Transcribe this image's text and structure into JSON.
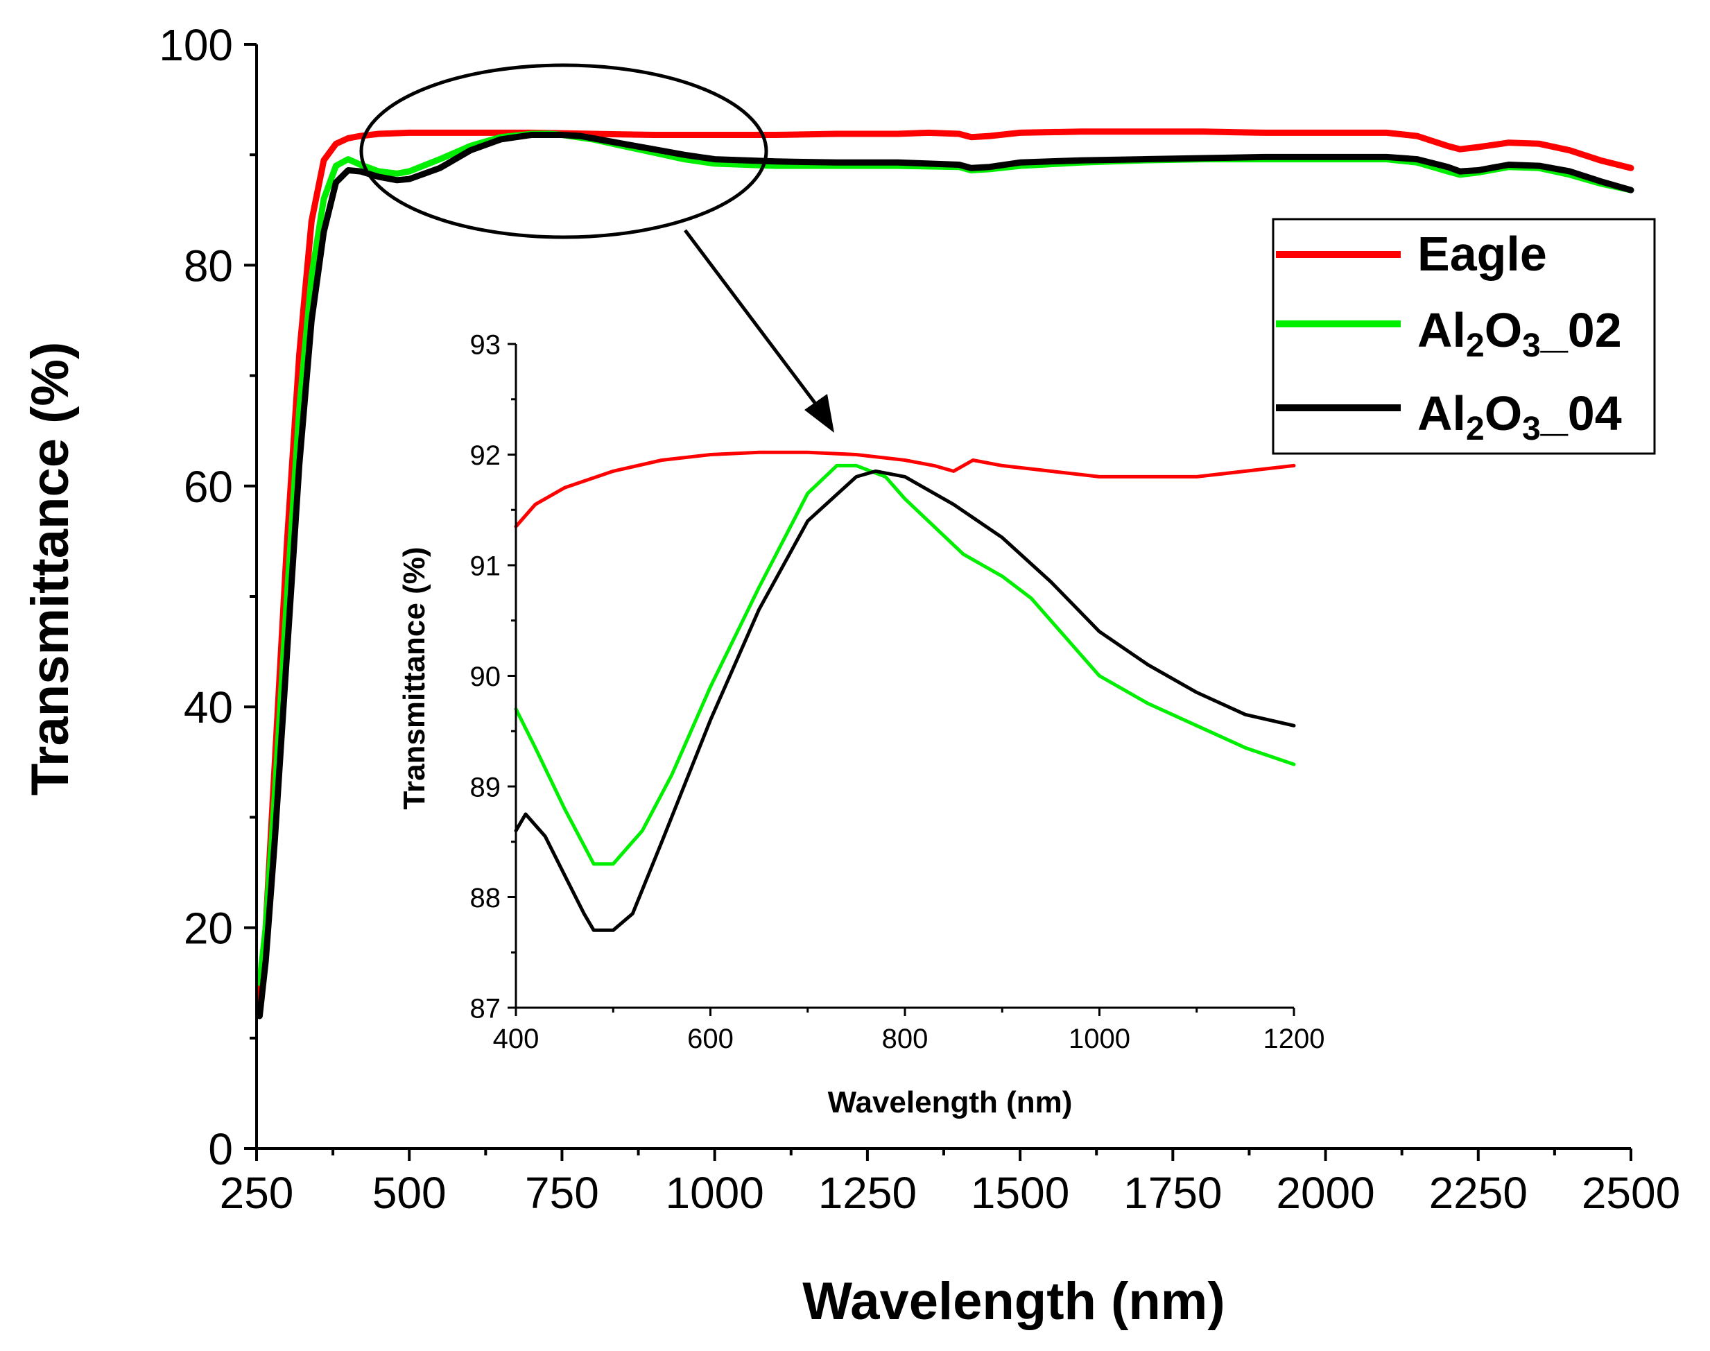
{
  "chart_data": [
    {
      "id": "main",
      "type": "line",
      "title": "",
      "xlabel": "Wavelength (nm)",
      "ylabel": "Transmittance (%)",
      "xlim": [
        250,
        2500
      ],
      "ylim": [
        0,
        100
      ],
      "xticks": [
        250,
        500,
        750,
        1000,
        1250,
        1500,
        1750,
        2000,
        2250,
        2500
      ],
      "yticks": [
        0,
        20,
        40,
        60,
        80,
        100
      ],
      "xtick_labels": [
        "250",
        "500",
        "750",
        "1000",
        "1250",
        "1500",
        "1750",
        "2000",
        "2250",
        "2500"
      ],
      "ytick_labels": [
        "0",
        "20",
        "40",
        "60",
        "80",
        "100"
      ],
      "legend_position": "top-right",
      "series": [
        {
          "name": "Eagle",
          "color": "#ff0000",
          "x": [
            255,
            265,
            280,
            300,
            320,
            340,
            360,
            380,
            400,
            420,
            450,
            500,
            600,
            700,
            800,
            900,
            1000,
            1100,
            1200,
            1300,
            1350,
            1400,
            1420,
            1450,
            1500,
            1600,
            1700,
            1800,
            1900,
            2000,
            2100,
            2150,
            2200,
            2220,
            2250,
            2300,
            2350,
            2400,
            2450,
            2500
          ],
          "y": [
            13,
            20,
            35,
            55,
            72,
            84,
            89.5,
            91,
            91.5,
            91.7,
            91.9,
            92,
            92,
            92,
            91.9,
            91.8,
            91.8,
            91.8,
            91.9,
            91.9,
            92,
            91.9,
            91.6,
            91.7,
            92,
            92.1,
            92.1,
            92.1,
            92,
            92,
            92,
            91.7,
            90.8,
            90.5,
            90.7,
            91.1,
            91,
            90.4,
            89.5,
            88.8
          ]
        },
        {
          "name": "Al2O3_02",
          "color": "#00ee00",
          "x": [
            255,
            265,
            280,
            300,
            320,
            340,
            360,
            380,
            400,
            420,
            450,
            480,
            500,
            550,
            600,
            650,
            700,
            730,
            750,
            800,
            850,
            900,
            950,
            1000,
            1100,
            1200,
            1300,
            1400,
            1420,
            1450,
            1500,
            1600,
            1700,
            1800,
            1900,
            2000,
            2100,
            2150,
            2200,
            2220,
            2250,
            2300,
            2350,
            2400,
            2450,
            2500
          ],
          "y": [
            15,
            20,
            32,
            50,
            67,
            79,
            86,
            89,
            89.6,
            89.1,
            88.5,
            88.3,
            88.5,
            89.6,
            90.8,
            91.6,
            91.9,
            91.9,
            91.8,
            91.4,
            90.8,
            90.2,
            89.6,
            89.2,
            89,
            89,
            89,
            88.9,
            88.6,
            88.7,
            89,
            89.3,
            89.5,
            89.6,
            89.6,
            89.6,
            89.6,
            89.3,
            88.5,
            88.2,
            88.4,
            88.9,
            88.8,
            88.2,
            87.4,
            86.8
          ]
        },
        {
          "name": "Al2O3_04",
          "color": "#000000",
          "x": [
            255,
            265,
            280,
            300,
            320,
            340,
            360,
            380,
            400,
            420,
            450,
            480,
            500,
            550,
            600,
            650,
            700,
            750,
            780,
            800,
            850,
            900,
            950,
            1000,
            1100,
            1200,
            1300,
            1400,
            1420,
            1450,
            1500,
            1600,
            1700,
            1800,
            1900,
            2000,
            2100,
            2150,
            2200,
            2220,
            2250,
            2300,
            2350,
            2400,
            2450,
            2500
          ],
          "y": [
            12,
            17,
            28,
            45,
            62,
            75,
            83,
            87.5,
            88.6,
            88.5,
            88,
            87.7,
            87.8,
            88.8,
            90.4,
            91.4,
            91.8,
            91.8,
            91.7,
            91.5,
            91,
            90.5,
            90,
            89.6,
            89.4,
            89.3,
            89.3,
            89.1,
            88.8,
            88.9,
            89.3,
            89.5,
            89.6,
            89.7,
            89.8,
            89.8,
            89.8,
            89.6,
            88.9,
            88.5,
            88.6,
            89.1,
            89,
            88.5,
            87.6,
            86.8
          ]
        }
      ],
      "annotations": [
        "ellipse highlighting 400–1200 nm region",
        "arrow pointing to inset"
      ]
    },
    {
      "id": "inset",
      "type": "line",
      "title": "",
      "xlabel": "Wavelength (nm)",
      "ylabel": "Transmittance (%)",
      "xlim": [
        400,
        1200
      ],
      "ylim": [
        87,
        93
      ],
      "xticks": [
        400,
        600,
        800,
        1000,
        1200
      ],
      "yticks": [
        87,
        88,
        89,
        90,
        91,
        92,
        93
      ],
      "xtick_labels": [
        "400",
        "600",
        "800",
        "1000",
        "1200"
      ],
      "ytick_labels": [
        "87",
        "88",
        "89",
        "90",
        "91",
        "92",
        "93"
      ],
      "series": [
        {
          "name": "Eagle",
          "color": "#ff0000",
          "x": [
            400,
            420,
            450,
            500,
            550,
            600,
            650,
            700,
            750,
            800,
            830,
            850,
            870,
            900,
            950,
            1000,
            1050,
            1100,
            1150,
            1200
          ],
          "y": [
            91.35,
            91.55,
            91.7,
            91.85,
            91.95,
            92,
            92.02,
            92.02,
            92,
            91.95,
            91.9,
            91.85,
            91.95,
            91.9,
            91.85,
            91.8,
            91.8,
            91.8,
            91.85,
            91.9
          ]
        },
        {
          "name": "Al2O3_02",
          "color": "#00ee00",
          "x": [
            400,
            420,
            450,
            480,
            500,
            530,
            560,
            600,
            650,
            700,
            730,
            750,
            780,
            800,
            830,
            860,
            880,
            900,
            930,
            950,
            980,
            1000,
            1050,
            1100,
            1150,
            1200
          ],
          "y": [
            89.7,
            89.35,
            88.8,
            88.3,
            88.3,
            88.6,
            89.1,
            89.9,
            90.8,
            91.65,
            91.9,
            91.9,
            91.8,
            91.6,
            91.35,
            91.1,
            91,
            90.9,
            90.7,
            90.5,
            90.2,
            90,
            89.75,
            89.55,
            89.35,
            89.2
          ]
        },
        {
          "name": "Al2O3_04",
          "color": "#000000",
          "x": [
            400,
            410,
            430,
            450,
            470,
            480,
            500,
            520,
            550,
            600,
            650,
            700,
            750,
            770,
            800,
            850,
            900,
            950,
            1000,
            1050,
            1100,
            1150,
            1200
          ],
          "y": [
            88.6,
            88.75,
            88.55,
            88.2,
            87.85,
            87.7,
            87.7,
            87.85,
            88.5,
            89.6,
            90.6,
            91.4,
            91.8,
            91.85,
            91.8,
            91.55,
            91.25,
            90.85,
            90.4,
            90.1,
            89.85,
            89.65,
            89.55
          ]
        }
      ]
    }
  ]
}
